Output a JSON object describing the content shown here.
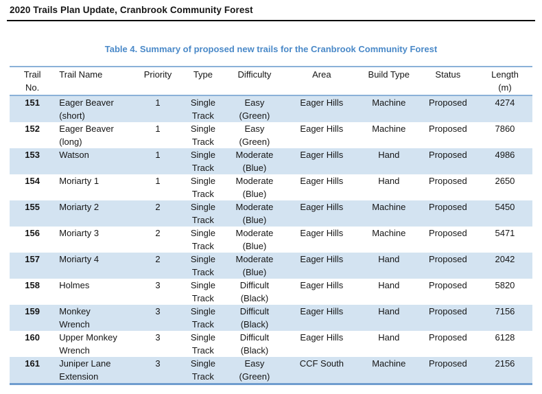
{
  "page": {
    "header_title": "2020 Trails Plan Update, Cranbrook Community Forest",
    "caption": "Table 4. Summary of proposed new trails for the Cranbrook Community Forest"
  },
  "colors": {
    "caption_blue": "#4a89c8",
    "row_stripe_blue": "#d3e3f1",
    "table_border_blue": "#8ab1d8",
    "header_rule_black": "#000000"
  },
  "table": {
    "columns": [
      {
        "key": "no",
        "label": [
          "Trail",
          "No."
        ],
        "align": "center"
      },
      {
        "key": "name",
        "label": [
          "Trail Name"
        ],
        "align": "left"
      },
      {
        "key": "priority",
        "label": [
          "Priority"
        ],
        "align": "center"
      },
      {
        "key": "type",
        "label": [
          "Type"
        ],
        "align": "center"
      },
      {
        "key": "difficulty",
        "label": [
          "Difficulty"
        ],
        "align": "center"
      },
      {
        "key": "area",
        "label": [
          "Area"
        ],
        "align": "center"
      },
      {
        "key": "build",
        "label": [
          "Build Type"
        ],
        "align": "center"
      },
      {
        "key": "status",
        "label": [
          "Status"
        ],
        "align": "center"
      },
      {
        "key": "length",
        "label": [
          "Length",
          "(m)"
        ],
        "align": "center"
      }
    ],
    "rows": [
      {
        "no": "151",
        "name": [
          "Eager Beaver",
          "(short)"
        ],
        "priority": "1",
        "type": [
          "Single",
          "Track"
        ],
        "difficulty": [
          "Easy",
          "(Green)"
        ],
        "area": "Eager Hills",
        "build": "Machine",
        "status": "Proposed",
        "length": "4274"
      },
      {
        "no": "152",
        "name": [
          "Eager Beaver",
          "(long)"
        ],
        "priority": "1",
        "type": [
          "Single",
          "Track"
        ],
        "difficulty": [
          "Easy",
          "(Green)"
        ],
        "area": "Eager Hills",
        "build": "Machine",
        "status": "Proposed",
        "length": "7860"
      },
      {
        "no": "153",
        "name": [
          "Watson"
        ],
        "priority": "1",
        "type": [
          "Single",
          "Track"
        ],
        "difficulty": [
          "Moderate",
          "(Blue)"
        ],
        "area": "Eager Hills",
        "build": "Hand",
        "status": "Proposed",
        "length": "4986"
      },
      {
        "no": "154",
        "name": [
          "Moriarty 1"
        ],
        "priority": "1",
        "type": [
          "Single",
          "Track"
        ],
        "difficulty": [
          "Moderate",
          "(Blue)"
        ],
        "area": "Eager Hills",
        "build": "Hand",
        "status": "Proposed",
        "length": "2650"
      },
      {
        "no": "155",
        "name": [
          "Moriarty 2"
        ],
        "priority": "2",
        "type": [
          "Single",
          "Track"
        ],
        "difficulty": [
          "Moderate",
          "(Blue)"
        ],
        "area": "Eager Hills",
        "build": "Machine",
        "status": "Proposed",
        "length": "5450"
      },
      {
        "no": "156",
        "name": [
          "Moriarty 3"
        ],
        "priority": "2",
        "type": [
          "Single",
          "Track"
        ],
        "difficulty": [
          "Moderate",
          "(Blue)"
        ],
        "area": "Eager Hills",
        "build": "Machine",
        "status": "Proposed",
        "length": "5471"
      },
      {
        "no": "157",
        "name": [
          "Moriarty 4"
        ],
        "priority": "2",
        "type": [
          "Single",
          "Track"
        ],
        "difficulty": [
          "Moderate",
          "(Blue)"
        ],
        "area": "Eager Hills",
        "build": "Hand",
        "status": "Proposed",
        "length": "2042"
      },
      {
        "no": "158",
        "name": [
          "Holmes"
        ],
        "priority": "3",
        "type": [
          "Single",
          "Track"
        ],
        "difficulty": [
          "Difficult",
          "(Black)"
        ],
        "area": "Eager Hills",
        "build": "Hand",
        "status": "Proposed",
        "length": "5820"
      },
      {
        "no": "159",
        "name": [
          "Monkey",
          "Wrench"
        ],
        "priority": "3",
        "type": [
          "Single",
          "Track"
        ],
        "difficulty": [
          "Difficult",
          "(Black)"
        ],
        "area": "Eager Hills",
        "build": "Hand",
        "status": "Proposed",
        "length": "7156"
      },
      {
        "no": "160",
        "name": [
          "Upper Monkey",
          "Wrench"
        ],
        "priority": "3",
        "type": [
          "Single",
          "Track"
        ],
        "difficulty": [
          "Difficult",
          "(Black)"
        ],
        "area": "Eager Hills",
        "build": "Hand",
        "status": "Proposed",
        "length": "6128"
      },
      {
        "no": "161",
        "name": [
          "Juniper Lane",
          "Extension"
        ],
        "priority": "3",
        "type": [
          "Single",
          "Track"
        ],
        "difficulty": [
          "Easy",
          "(Green)"
        ],
        "area": "CCF South",
        "build": "Machine",
        "status": "Proposed",
        "length": "2156"
      }
    ]
  }
}
